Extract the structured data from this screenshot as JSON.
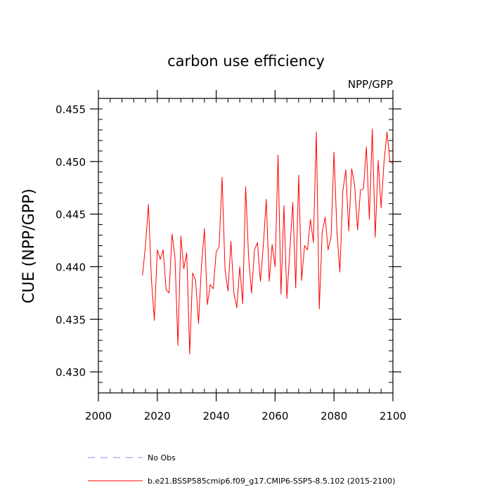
{
  "chart_data": {
    "type": "line",
    "title": "carbon use efficiency",
    "subtitle": "NPP/GPP",
    "xlabel": "",
    "ylabel": "CUE  (NPP/GPP)",
    "xlim": [
      2000,
      2100
    ],
    "ylim": [
      0.428,
      0.456
    ],
    "x_major_ticks": [
      2000,
      2020,
      2040,
      2060,
      2080,
      2100
    ],
    "x_tick_labels": [
      "2000",
      "2020",
      "2040",
      "2060",
      "2080",
      "2100"
    ],
    "y_major_ticks": [
      0.43,
      0.435,
      0.44,
      0.445,
      0.45,
      0.455
    ],
    "y_tick_labels": [
      "0.430",
      "0.435",
      "0.440",
      "0.445",
      "0.450",
      "0.455"
    ],
    "x_minor_step": 4,
    "y_minor_step": 0.001,
    "grid": false,
    "legend_position": "bottom",
    "series": [
      {
        "name": "b.e21.BSSP585cmip6.f09_g17.CMIP6-SSP5-8.5.102 (2015-2100)",
        "color": "#ff0000",
        "style": "solid",
        "x": [
          2015,
          2016,
          2017,
          2018,
          2019,
          2020,
          2021,
          2022,
          2023,
          2024,
          2025,
          2026,
          2027,
          2028,
          2029,
          2030,
          2031,
          2032,
          2033,
          2034,
          2035,
          2036,
          2037,
          2038,
          2039,
          2040,
          2041,
          2042,
          2043,
          2044,
          2045,
          2046,
          2047,
          2048,
          2049,
          2050,
          2051,
          2052,
          2053,
          2054,
          2055,
          2056,
          2057,
          2058,
          2059,
          2060,
          2061,
          2062,
          2063,
          2064,
          2065,
          2066,
          2067,
          2068,
          2069,
          2070,
          2071,
          2072,
          2073,
          2074,
          2075,
          2076,
          2077,
          2078,
          2079,
          2080,
          2081,
          2082,
          2083,
          2084,
          2085,
          2086,
          2087,
          2088,
          2089,
          2090,
          2091,
          2092,
          2093,
          2094,
          2095,
          2096,
          2097,
          2098,
          2099,
          2100
        ],
        "values": [
          0.4392,
          0.4421,
          0.4459,
          0.4388,
          0.4349,
          0.4416,
          0.4407,
          0.4416,
          0.4378,
          0.4375,
          0.4431,
          0.4409,
          0.4325,
          0.4429,
          0.4398,
          0.4413,
          0.4317,
          0.4394,
          0.4387,
          0.4346,
          0.4401,
          0.4436,
          0.4364,
          0.4383,
          0.4379,
          0.4414,
          0.4419,
          0.4485,
          0.4397,
          0.4377,
          0.4424,
          0.4375,
          0.4361,
          0.44,
          0.4365,
          0.4476,
          0.4409,
          0.4375,
          0.4416,
          0.4423,
          0.4386,
          0.442,
          0.4464,
          0.4386,
          0.4421,
          0.44,
          0.4506,
          0.4374,
          0.4458,
          0.437,
          0.4415,
          0.4461,
          0.438,
          0.4487,
          0.4387,
          0.442,
          0.4416,
          0.4445,
          0.4423,
          0.4528,
          0.436,
          0.4433,
          0.4447,
          0.4416,
          0.4428,
          0.4509,
          0.4433,
          0.4395,
          0.4472,
          0.4492,
          0.4434,
          0.4493,
          0.4478,
          0.4435,
          0.4473,
          0.4474,
          0.4514,
          0.4445,
          0.4531,
          0.4428,
          0.4501,
          0.4456,
          0.45,
          0.4528,
          0.45,
          0.4498
        ]
      },
      {
        "name": "No Obs",
        "color": "#8080ff",
        "style": "dashed",
        "x": [],
        "values": []
      }
    ]
  }
}
